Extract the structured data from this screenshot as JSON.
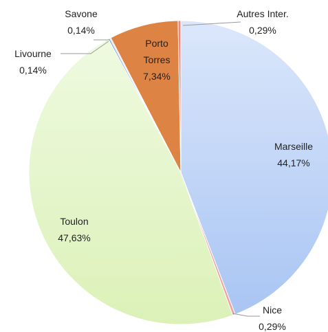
{
  "chart_data": {
    "type": "pie",
    "categories": [
      "Marseille",
      "Nice",
      "Toulon",
      "Livourne",
      "Savone",
      "Porto Torres",
      "Autres Inter."
    ],
    "values": [
      44.17,
      0.29,
      47.63,
      0.14,
      0.14,
      7.34,
      0.29
    ],
    "value_labels": [
      "44,17%",
      "0,29%",
      "47,63%",
      "0,14%",
      "0,14%",
      "7,34%",
      "0,29%"
    ],
    "colors": [
      "#b7cff5",
      "#f0a49c",
      "#e4f4c6",
      "#4f81bd",
      "#c9dcf3",
      "#dd8445",
      "#e68a86"
    ]
  }
}
